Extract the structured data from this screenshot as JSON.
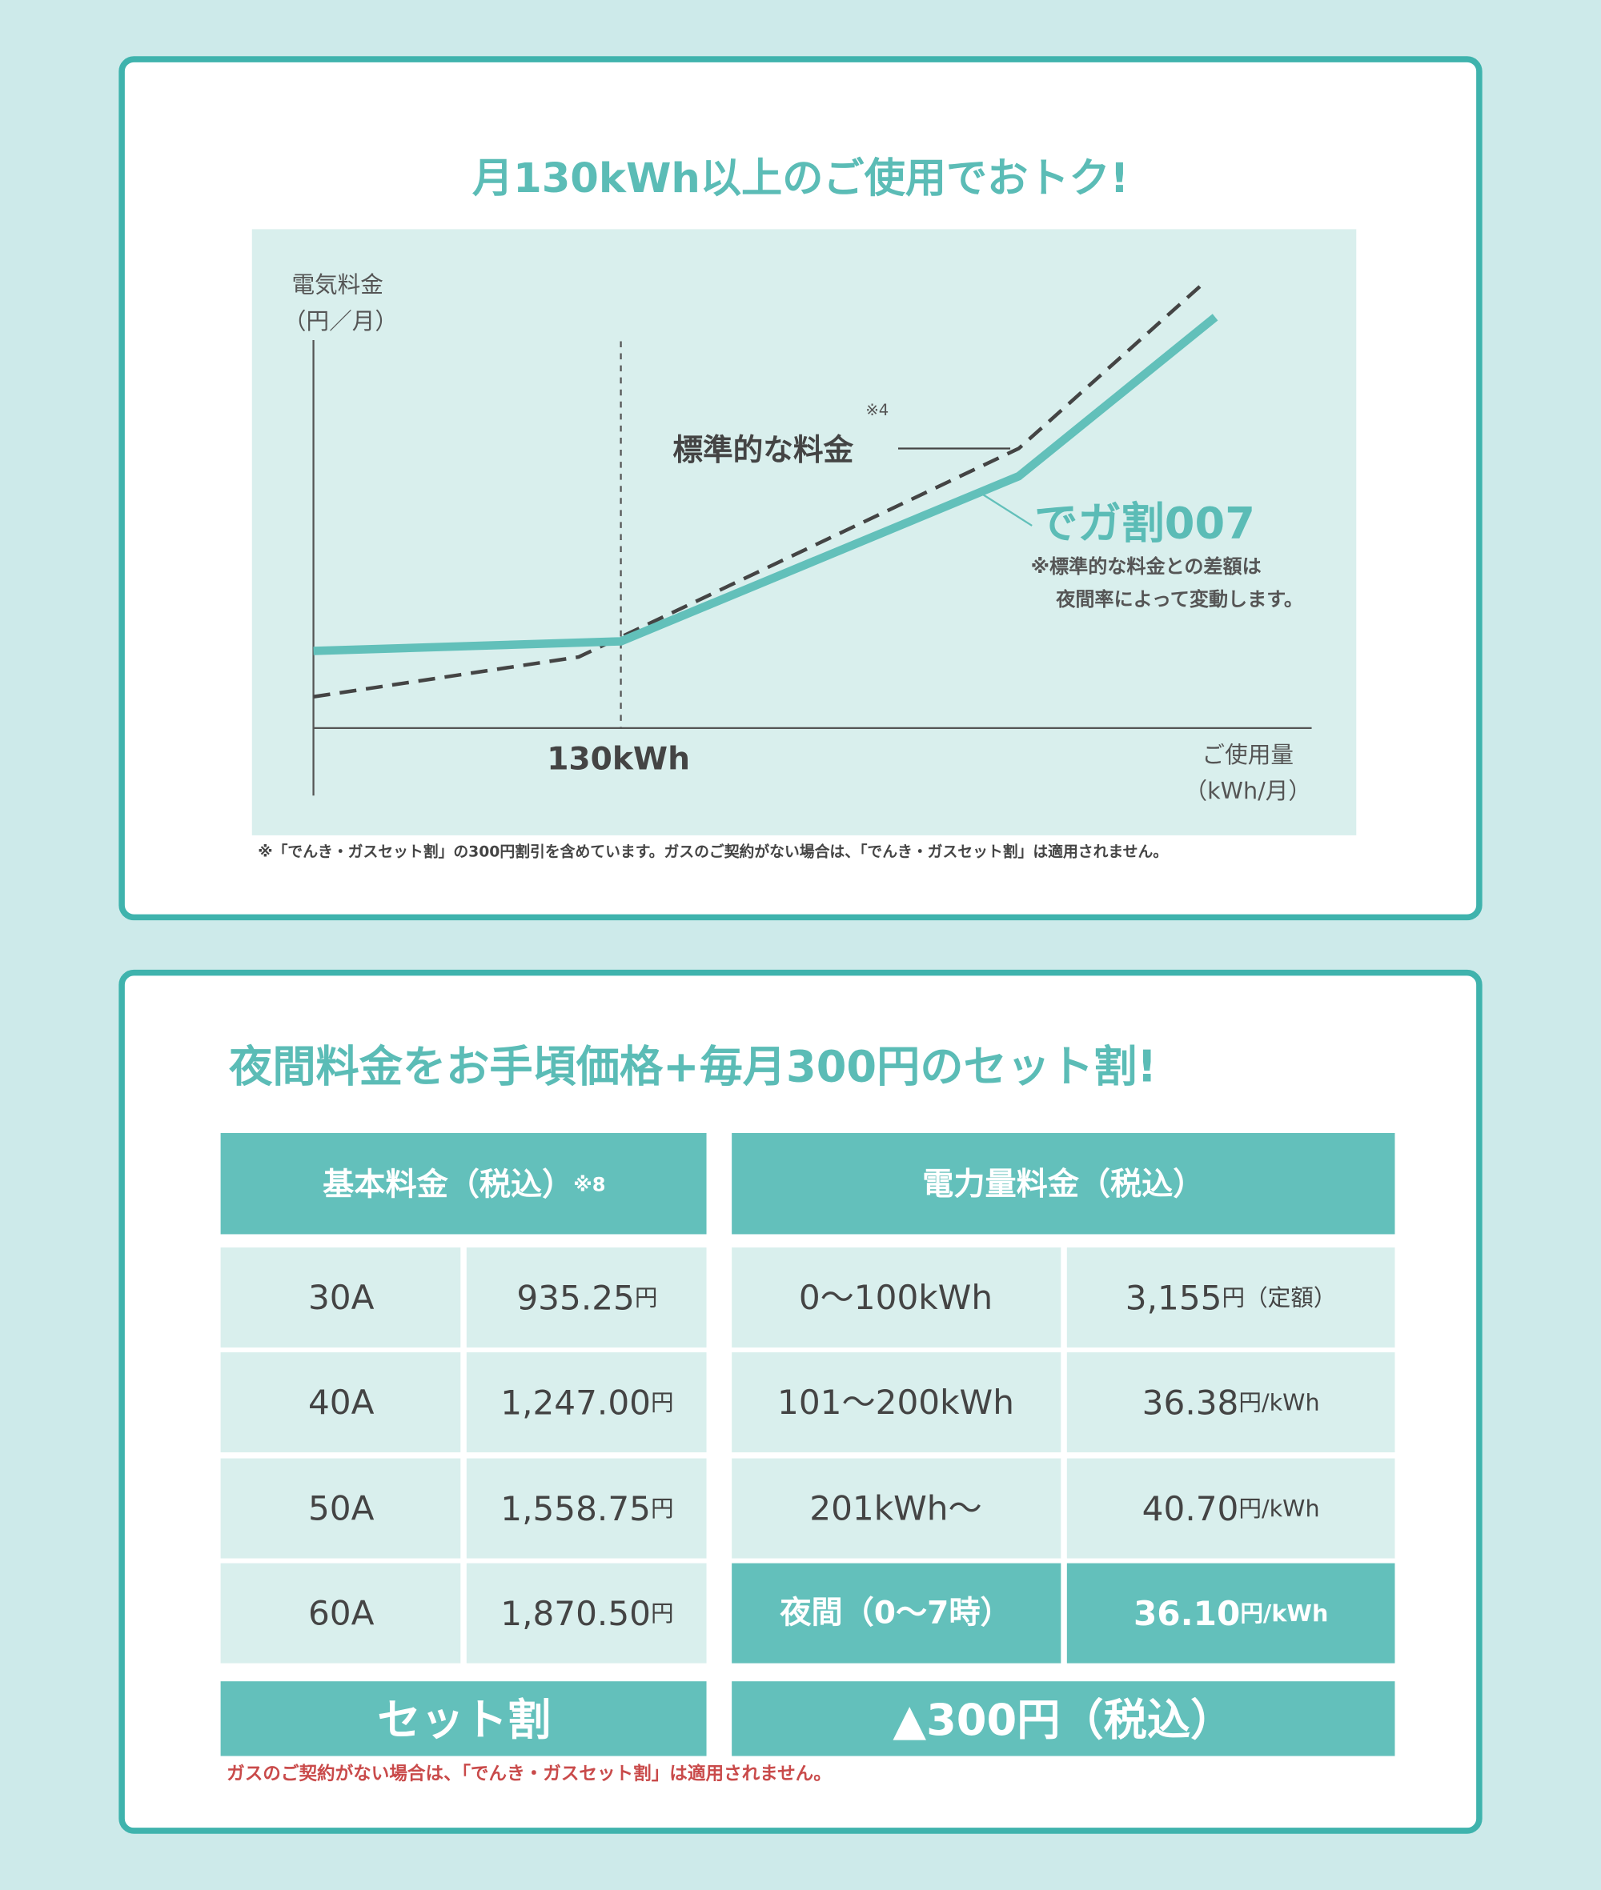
{
  "graph_card": {
    "title": "月130kWh以上のご使用でおトク!",
    "y_axis_label": [
      "電気料金",
      "（円／月）"
    ],
    "x_marker_label": "130kWh",
    "x_axis_label": [
      "ご使用量",
      "（kWh/月）"
    ],
    "standard_label": "標準的な料金",
    "standard_note": "※4",
    "plan_label": "でガ割007",
    "plan_note": [
      "※標準的な料金との差額は",
      "夜間率によって変動します。"
    ],
    "footnote": "※「でんき・ガスセット割」の300円割引を含めています。ガスのご契約がない場合は、「でんき・ガスセット割」は適用されません。"
  },
  "price_card": {
    "title": "夜間料金をお手頃価格+毎月300円のセット割!",
    "basic": {
      "header": "基本料金（税込）",
      "header_note": "※8",
      "rows": [
        {
          "ampere": "30A",
          "price": "935.25",
          "unit": "円"
        },
        {
          "ampere": "40A",
          "price": "1,247.00",
          "unit": "円"
        },
        {
          "ampere": "50A",
          "price": "1,558.75",
          "unit": "円"
        },
        {
          "ampere": "60A",
          "price": "1,870.50",
          "unit": "円"
        }
      ]
    },
    "energy": {
      "header": "電力量料金（税込）",
      "rows": [
        {
          "range": "0～100kWh",
          "price": "3,155",
          "unit": "円（定額）"
        },
        {
          "range": "101～200kWh",
          "price": "36.38",
          "unit": "円/kWh"
        },
        {
          "range": "201kWh～",
          "price": "40.70",
          "unit": "円/kWh"
        },
        {
          "range": "夜間（0～7時）",
          "price": "36.10",
          "unit": "円/kWh"
        }
      ]
    },
    "set_discount": {
      "label": "セット割",
      "value": "▲300円（税込）"
    },
    "footnote": "ガスのご契約がない場合は、「でんき・ガスセット割」は適用されません。"
  }
}
